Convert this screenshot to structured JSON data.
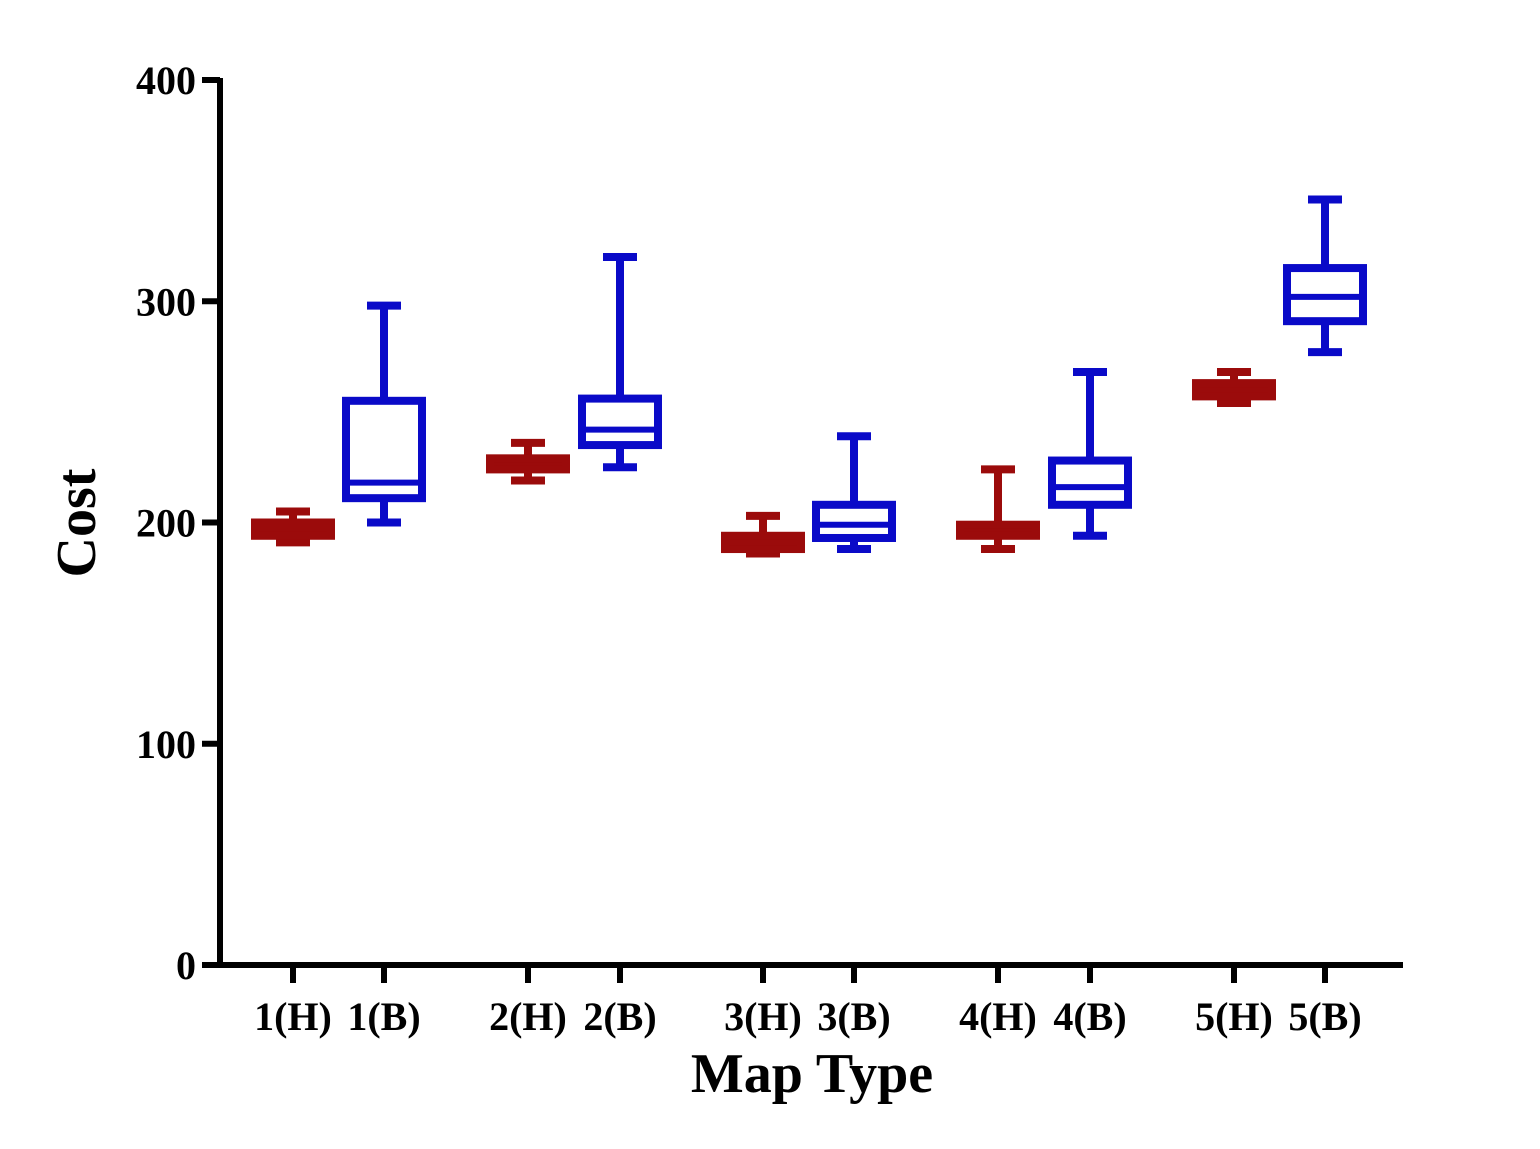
{
  "chart_data": {
    "type": "box",
    "title": "",
    "xlabel": "Map Type",
    "ylabel": "Cost",
    "ylim": [
      0,
      400
    ],
    "yticks": [
      0,
      100,
      200,
      300,
      400
    ],
    "grid": false,
    "categories": [
      "1(H)",
      "1(B)",
      "2(H)",
      "2(B)",
      "3(H)",
      "3(B)",
      "4(H)",
      "4(B)",
      "5(H)",
      "5(B)"
    ],
    "colors": {
      "H": "#9b0b0b",
      "B": "#0a0ac8",
      "axis": "#000000"
    },
    "boxes": [
      {
        "category": "1(H)",
        "group": "H",
        "min": 191,
        "q1": 194,
        "median": 197,
        "q3": 200,
        "max": 205
      },
      {
        "category": "1(B)",
        "group": "B",
        "min": 200,
        "q1": 211,
        "median": 218,
        "q3": 255,
        "max": 298
      },
      {
        "category": "2(H)",
        "group": "H",
        "min": 219,
        "q1": 224,
        "median": 227,
        "q3": 229,
        "max": 236
      },
      {
        "category": "2(B)",
        "group": "B",
        "min": 225,
        "q1": 235,
        "median": 242,
        "q3": 256,
        "max": 320
      },
      {
        "category": "3(H)",
        "group": "H",
        "min": 186,
        "q1": 188,
        "median": 190,
        "q3": 194,
        "max": 203
      },
      {
        "category": "3(B)",
        "group": "B",
        "min": 188,
        "q1": 193,
        "median": 199,
        "q3": 208,
        "max": 239
      },
      {
        "category": "4(H)",
        "group": "H",
        "min": 188,
        "q1": 194,
        "median": 196,
        "q3": 199,
        "max": 224
      },
      {
        "category": "4(B)",
        "group": "B",
        "min": 194,
        "q1": 208,
        "median": 216,
        "q3": 228,
        "max": 268
      },
      {
        "category": "5(H)",
        "group": "H",
        "min": 254,
        "q1": 257,
        "median": 260,
        "q3": 263,
        "max": 268
      },
      {
        "category": "5(B)",
        "group": "B",
        "min": 277,
        "q1": 291,
        "median": 302,
        "q3": 315,
        "max": 346
      }
    ]
  }
}
